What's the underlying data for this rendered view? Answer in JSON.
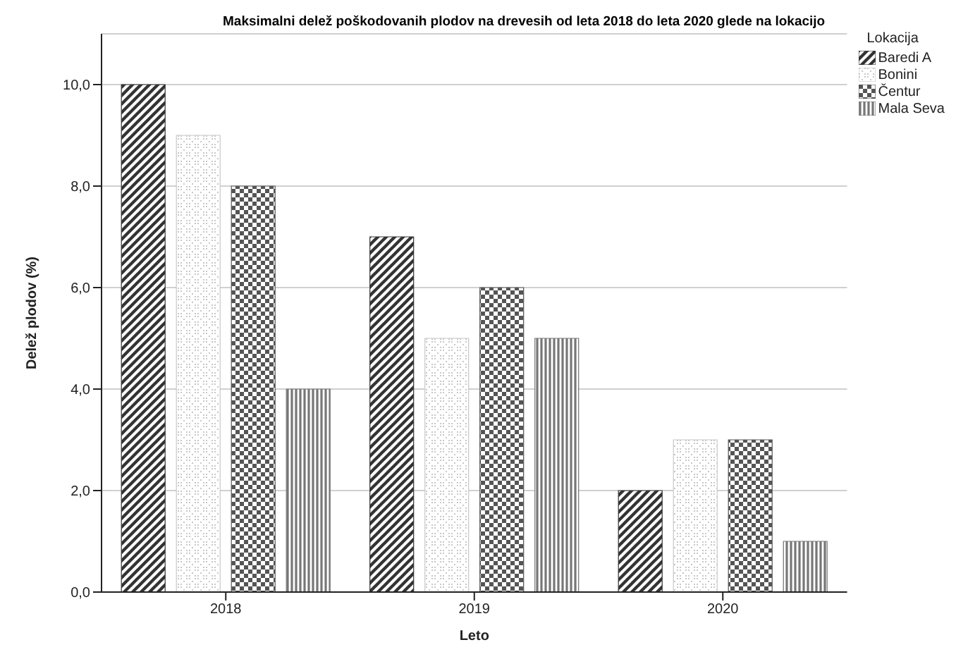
{
  "chart_data": {
    "type": "bar",
    "title": "Maksimalni delež poškodovanih plodov na drevesih od leta 2018 do leta 2020 glede na lokacijo",
    "xlabel": "Leto",
    "ylabel": "Delež plodov (%)",
    "legend_title": "Lokacija",
    "categories": [
      "2018",
      "2019",
      "2020"
    ],
    "series": [
      {
        "name": "Baredi A",
        "color": "#333333",
        "values": [
          10,
          7,
          2
        ]
      },
      {
        "name": "Bonini",
        "color": "#c8c8c8",
        "values": [
          9,
          5,
          3
        ]
      },
      {
        "name": "Čentur",
        "color": "#555555",
        "values": [
          8,
          6,
          3
        ]
      },
      {
        "name": "Mala Seva",
        "color": "#777777",
        "values": [
          4,
          5,
          1
        ]
      }
    ],
    "ylim": [
      0,
      11
    ],
    "yticks": [
      {
        "value": 0,
        "label": "0,0"
      },
      {
        "value": 2,
        "label": "2,0"
      },
      {
        "value": 4,
        "label": "4,0"
      },
      {
        "value": 6,
        "label": "6,0"
      },
      {
        "value": 8,
        "label": "8,0"
      },
      {
        "value": 10,
        "label": "10,0"
      }
    ],
    "grid": "y",
    "legend": "top right"
  }
}
